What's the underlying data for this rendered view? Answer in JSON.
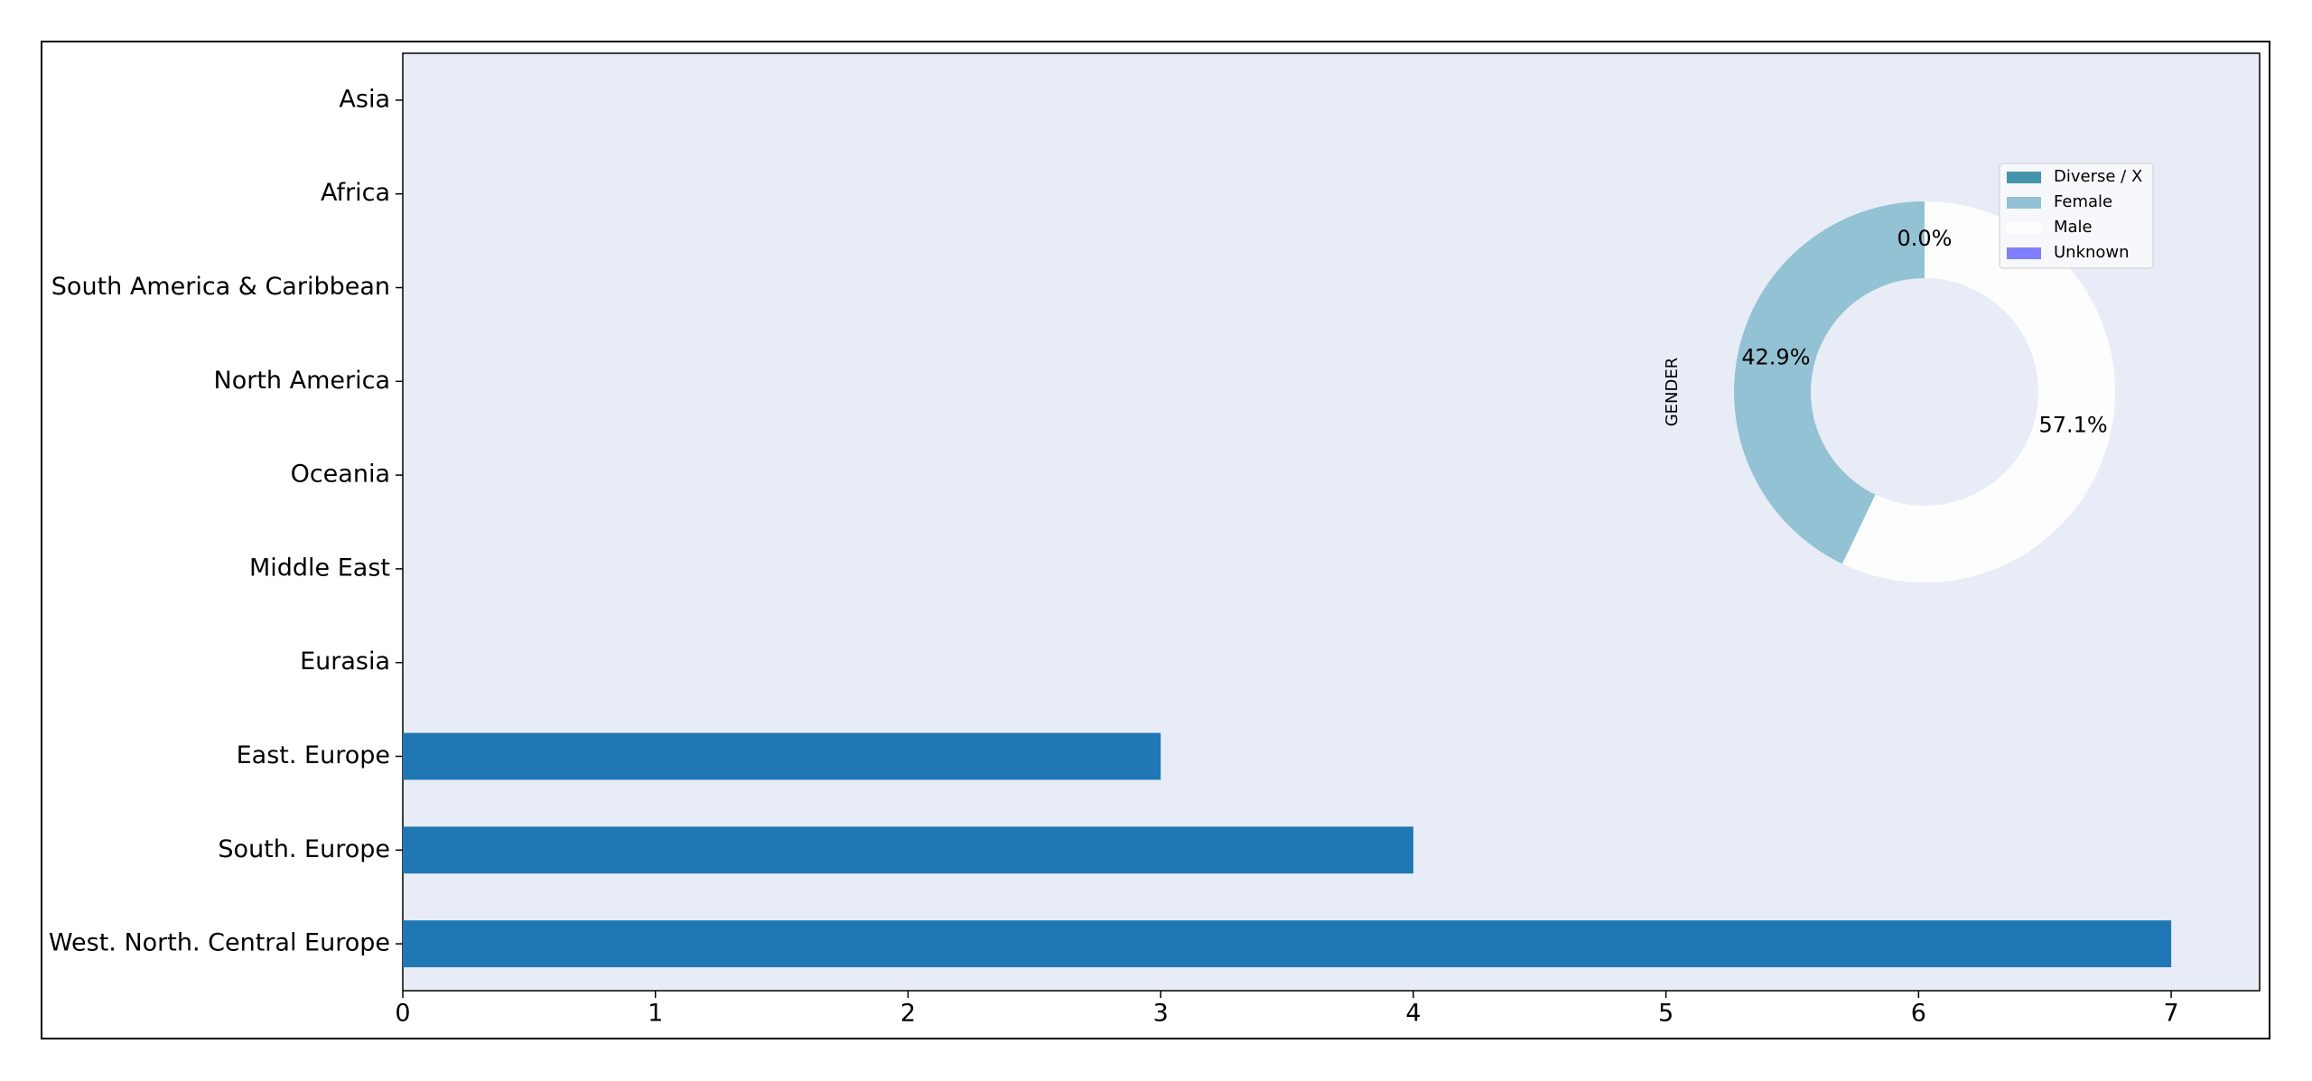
{
  "chart_data": [
    {
      "type": "barh",
      "categories": [
        "West. North. Central Europe",
        "South. Europe",
        "East. Europe",
        "Eurasia",
        "Middle East",
        "Oceania",
        "North America",
        "South America & Caribbean",
        "Africa",
        "Asia"
      ],
      "values": [
        7,
        4,
        3,
        0,
        0,
        0,
        0,
        0,
        0,
        0
      ],
      "color": "#1f77b4",
      "xlim": [
        0,
        7.35
      ],
      "xticks": [
        0,
        1,
        2,
        3,
        4,
        5,
        6,
        7
      ],
      "ylim": [
        -0.5,
        9.5
      ]
    },
    {
      "type": "pie",
      "ylabel": "GENDER",
      "categories": [
        "Diverse / X",
        "Female",
        "Male",
        "Unknown"
      ],
      "values": [
        0,
        42.9,
        57.1,
        0
      ],
      "value_labels": [
        "0.0%",
        "42.9%",
        "57.1%",
        "0.0%"
      ],
      "colors": [
        "#4393ad",
        "#92c2d4",
        "#fdfdfd",
        "#7f7fff"
      ],
      "legend": "upper right"
    }
  ]
}
